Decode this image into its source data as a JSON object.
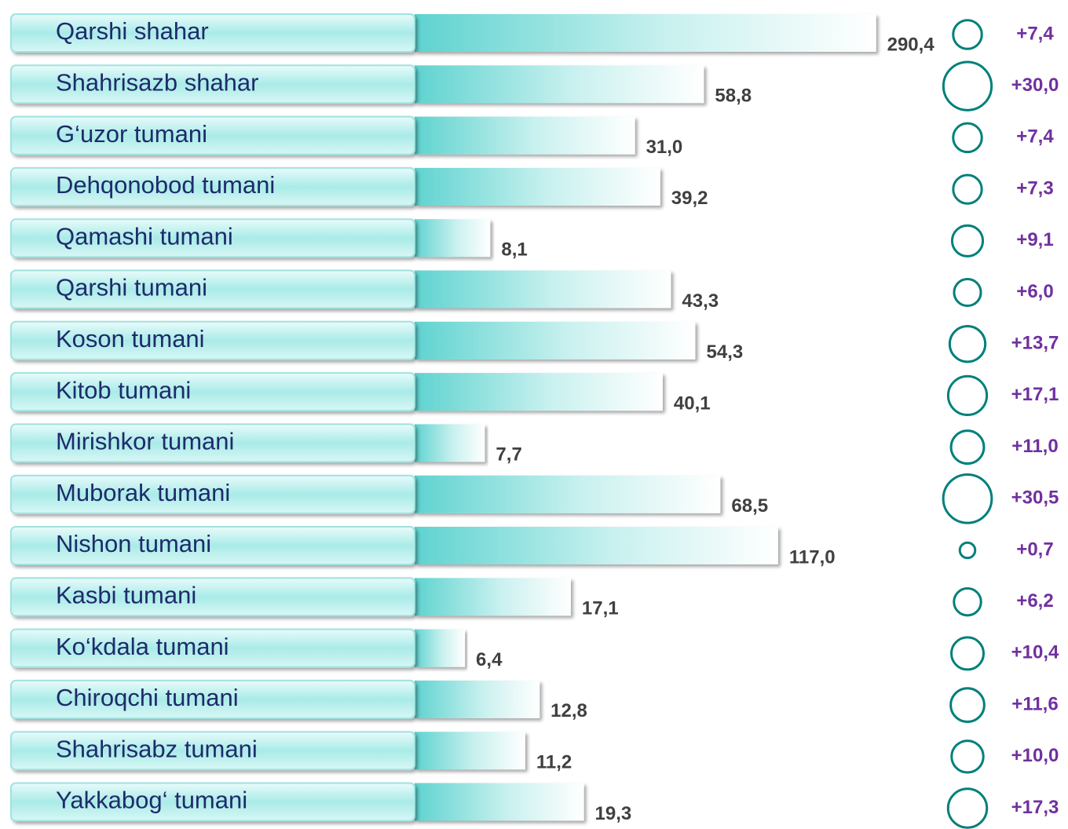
{
  "chart_data": {
    "type": "bar",
    "categories": [
      "Qarshi shahar",
      "Shahrisazb shahar",
      "G‘uzor tumani",
      "Dehqonobod tumani",
      "Qamashi tumani",
      "Qarshi tumani",
      "Koson tumani",
      "Kitob tumani",
      "Mirishkor tumani",
      "Muborak tumani",
      "Nishon tumani",
      "Kasbi tumani",
      "Ko‘kdala tumani",
      "Chiroqchi tumani",
      "Shahrisabz tumani",
      "Yakkabog‘ tumani"
    ],
    "values": [
      290.4,
      58.8,
      31.0,
      39.2,
      8.1,
      43.3,
      54.3,
      40.1,
      7.7,
      68.5,
      117.0,
      17.1,
      6.4,
      12.8,
      11.2,
      19.3
    ],
    "value_labels": [
      "290,4",
      "58,8",
      "31,0",
      "39,2",
      "8,1",
      "43,3",
      "54,3",
      "40,1",
      "7,7",
      "68,5",
      "117,0",
      "17,1",
      "6,4",
      "12,8",
      "11,2",
      "19,3"
    ],
    "color": "#5fd3d0",
    "changes": [
      7.4,
      30.0,
      7.4,
      7.3,
      9.1,
      6.0,
      13.7,
      17.1,
      11.0,
      30.5,
      0.7,
      6.2,
      10.4,
      11.6,
      10.0,
      17.3
    ],
    "change_labels": [
      "+7,4",
      "+30,0",
      "+7,4",
      "+7,3",
      "+9,1",
      "+6,0",
      "+13,7",
      "+17,1",
      "+11,0",
      "+30,5",
      "+0,7",
      "+6,2",
      "+10,4",
      "+11,6",
      "+10,0",
      "+17,3"
    ],
    "circle_color": "#00807a"
  }
}
